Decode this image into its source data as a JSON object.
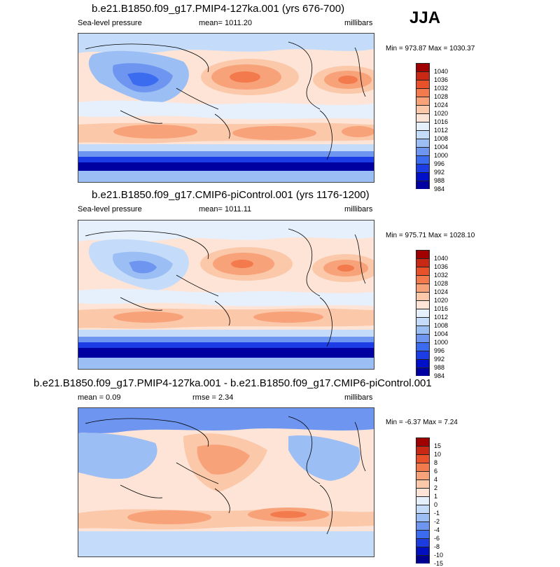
{
  "season": "JJA",
  "panels": [
    {
      "title": "b.e21.B1850.f09_g17.PMIP4-127ka.001 (yrs 676-700)",
      "left": "Sea-level pressure",
      "center": "mean= 1011.20",
      "right": "millibars",
      "minmax": "Min = 973.87 Max = 1030.37",
      "legend_colors": [
        "#0000a0",
        "#0010c8",
        "#1c3ce6",
        "#3b6cf0",
        "#6e96f0",
        "#9bbef5",
        "#c4dcfa",
        "#e6f0fc",
        "#fde4d6",
        "#fbc8aa",
        "#f8a27a",
        "#f37a4c",
        "#e8512a",
        "#c82814",
        "#a00000"
      ],
      "legend_labels": [
        "1040",
        "1036",
        "1032",
        "1028",
        "1024",
        "1020",
        "1016",
        "1012",
        "1008",
        "1004",
        "1000",
        "996",
        "992",
        "988",
        "984"
      ]
    },
    {
      "title": "b.e21.B1850.f09_g17.CMIP6-piControl.001 (yrs 1176-1200)",
      "left": "Sea-level pressure",
      "center": "mean= 1011.11",
      "right": "millibars",
      "minmax": "Min = 975.71 Max = 1028.10",
      "legend_colors": [
        "#0000a0",
        "#0010c8",
        "#1c3ce6",
        "#3b6cf0",
        "#6e96f0",
        "#9bbef5",
        "#c4dcfa",
        "#e6f0fc",
        "#fde4d6",
        "#fbc8aa",
        "#f8a27a",
        "#f37a4c",
        "#e8512a",
        "#c82814",
        "#a00000"
      ],
      "legend_labels": [
        "1040",
        "1036",
        "1032",
        "1028",
        "1024",
        "1020",
        "1016",
        "1012",
        "1008",
        "1004",
        "1000",
        "996",
        "992",
        "988",
        "984"
      ]
    },
    {
      "title": "b.e21.B1850.f09_g17.PMIP4-127ka.001 - b.e21.B1850.f09_g17.CMIP6-piControl.001",
      "left": "mean =  0.09",
      "center": "rmse =  2.34",
      "right": "millibars",
      "minmax": "Min =  -6.37 Max =   7.24",
      "legend_colors": [
        "#000090",
        "#0010c0",
        "#1c3ce0",
        "#3b6cf0",
        "#6e96f0",
        "#9bbef5",
        "#c4dcfa",
        "#e6f0fc",
        "#fde4d6",
        "#fbc8aa",
        "#f8a27a",
        "#f37a4c",
        "#e8512a",
        "#c82814",
        "#a00000"
      ],
      "legend_labels": [
        "15",
        "10",
        "8",
        "6",
        "4",
        "2",
        "1",
        "0",
        "-1",
        "-2",
        "-4",
        "-6",
        "-8",
        "-10",
        "-15"
      ]
    }
  ]
}
